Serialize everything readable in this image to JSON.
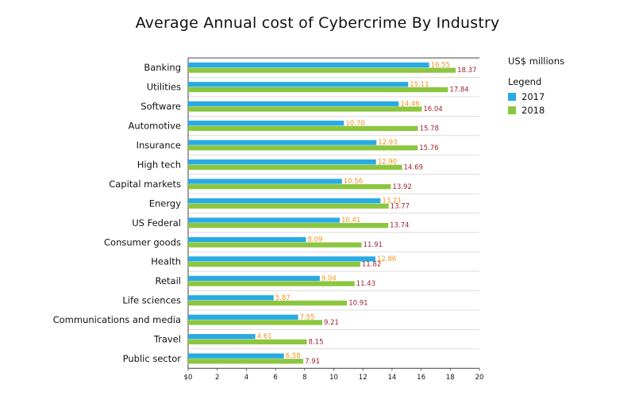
{
  "chart_data": {
    "type": "bar",
    "orientation": "horizontal",
    "title": "Average Annual cost of Cybercrime By Industry",
    "units": "US$ millions",
    "legend_title": "Legend",
    "legend_position": "top-right",
    "categories": [
      "Banking",
      "Utilities",
      "Software",
      "Automotive",
      "Insurance",
      "High tech",
      "Capital markets",
      "Energy",
      "US Federal",
      "Consumer goods",
      "Health",
      "Retail",
      "Life sciences",
      "Communications and media",
      "Travel",
      "Public sector"
    ],
    "series": [
      {
        "name": "2017",
        "color": "#29abe2",
        "label_color": "#f7931e",
        "values": [
          16.55,
          15.11,
          14.46,
          10.7,
          12.93,
          12.9,
          10.56,
          13.21,
          10.41,
          8.09,
          12.86,
          9.04,
          5.87,
          7.55,
          4.61,
          6.58
        ],
        "labels": [
          "16.55",
          "15.11",
          "14.46",
          "10.70",
          "12.93",
          "12.90",
          "10.56",
          "13.21",
          "10.41",
          "8.09",
          "12.86",
          "9.04",
          "5.87",
          "7.55",
          "4.61",
          "6.58"
        ]
      },
      {
        "name": "2018",
        "color": "#8cc63f",
        "label_color": "#9e1f2f",
        "values": [
          18.37,
          17.84,
          16.04,
          15.78,
          15.76,
          14.69,
          13.92,
          13.77,
          13.74,
          11.91,
          11.82,
          11.43,
          10.91,
          9.21,
          8.15,
          7.91
        ],
        "labels": [
          "18.37",
          "17.84",
          "16.04",
          "15.78",
          "15.76",
          "14.69",
          "13.92",
          "13.77",
          "13.74",
          "11.91",
          "11.82",
          "11.43",
          "10.91",
          "9.21",
          "8.15",
          "7.91"
        ]
      }
    ],
    "x_ticks": [
      "$0",
      "2",
      "4",
      "6",
      "8",
      "10",
      "12",
      "14",
      "16",
      "18",
      "20"
    ],
    "xlim": [
      0,
      20
    ],
    "grid": "horizontal separators between categories"
  }
}
